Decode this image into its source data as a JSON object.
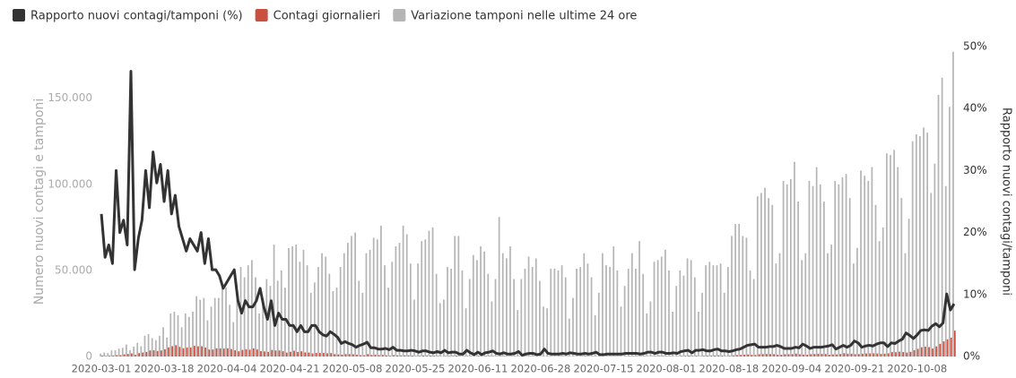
{
  "chart_data": {
    "type": "bar-line",
    "x": [
      "2020-03-01",
      "2020-03-02",
      "2020-03-03",
      "2020-03-04",
      "2020-03-05",
      "2020-03-06",
      "2020-03-07",
      "2020-03-08",
      "2020-03-09",
      "2020-03-10",
      "2020-03-11",
      "2020-03-12",
      "2020-03-13",
      "2020-03-14",
      "2020-03-15",
      "2020-03-16",
      "2020-03-17",
      "2020-03-18",
      "2020-03-19",
      "2020-03-20",
      "2020-03-21",
      "2020-03-22",
      "2020-03-23",
      "2020-03-24",
      "2020-03-25",
      "2020-03-26",
      "2020-03-27",
      "2020-03-28",
      "2020-03-29",
      "2020-03-30",
      "2020-03-31",
      "2020-04-01",
      "2020-04-02",
      "2020-04-03",
      "2020-04-04",
      "2020-04-05",
      "2020-04-06",
      "2020-04-07",
      "2020-04-08",
      "2020-04-09",
      "2020-04-10",
      "2020-04-11",
      "2020-04-12",
      "2020-04-13",
      "2020-04-14",
      "2020-04-15",
      "2020-04-16",
      "2020-04-17",
      "2020-04-18",
      "2020-04-19",
      "2020-04-20",
      "2020-04-21",
      "2020-04-22",
      "2020-04-23",
      "2020-04-24",
      "2020-04-25",
      "2020-04-26",
      "2020-04-27",
      "2020-04-28",
      "2020-04-29",
      "2020-04-30",
      "2020-05-01",
      "2020-05-02",
      "2020-05-03",
      "2020-05-04",
      "2020-05-05",
      "2020-05-06",
      "2020-05-07",
      "2020-05-08",
      "2020-05-09",
      "2020-05-10",
      "2020-05-11",
      "2020-05-12",
      "2020-05-13",
      "2020-05-14",
      "2020-05-15",
      "2020-05-16",
      "2020-05-17",
      "2020-05-18",
      "2020-05-19",
      "2020-05-20",
      "2020-05-21",
      "2020-05-22",
      "2020-05-23",
      "2020-05-24",
      "2020-05-25",
      "2020-05-26",
      "2020-05-27",
      "2020-05-28",
      "2020-05-29",
      "2020-05-30",
      "2020-05-31",
      "2020-06-01",
      "2020-06-02",
      "2020-06-03",
      "2020-06-04",
      "2020-06-05",
      "2020-06-06",
      "2020-06-07",
      "2020-06-08",
      "2020-06-09",
      "2020-06-10",
      "2020-06-11",
      "2020-06-12",
      "2020-06-13",
      "2020-06-14",
      "2020-06-15",
      "2020-06-16",
      "2020-06-17",
      "2020-06-18",
      "2020-06-19",
      "2020-06-20",
      "2020-06-21",
      "2020-06-22",
      "2020-06-23",
      "2020-06-24",
      "2020-06-25",
      "2020-06-26",
      "2020-06-27",
      "2020-06-28",
      "2020-06-29",
      "2020-06-30",
      "2020-07-01",
      "2020-07-02",
      "2020-07-03",
      "2020-07-04",
      "2020-07-05",
      "2020-07-06",
      "2020-07-07",
      "2020-07-08",
      "2020-07-09",
      "2020-07-10",
      "2020-07-11",
      "2020-07-12",
      "2020-07-13",
      "2020-07-14",
      "2020-07-15",
      "2020-07-16",
      "2020-07-17",
      "2020-07-18",
      "2020-07-19",
      "2020-07-20",
      "2020-07-21",
      "2020-07-22",
      "2020-07-23",
      "2020-07-24",
      "2020-07-25",
      "2020-07-26",
      "2020-07-27",
      "2020-07-28",
      "2020-07-29",
      "2020-07-30",
      "2020-07-31",
      "2020-08-01",
      "2020-08-02",
      "2020-08-03",
      "2020-08-04",
      "2020-08-05",
      "2020-08-06",
      "2020-08-07",
      "2020-08-08",
      "2020-08-09",
      "2020-08-10",
      "2020-08-11",
      "2020-08-12",
      "2020-08-13",
      "2020-08-14",
      "2020-08-15",
      "2020-08-16",
      "2020-08-17",
      "2020-08-18",
      "2020-08-19",
      "2020-08-20",
      "2020-08-21",
      "2020-08-22",
      "2020-08-23",
      "2020-08-24",
      "2020-08-25",
      "2020-08-26",
      "2020-08-27",
      "2020-08-28",
      "2020-08-29",
      "2020-08-30",
      "2020-08-31",
      "2020-09-01",
      "2020-09-02",
      "2020-09-03",
      "2020-09-04",
      "2020-09-05",
      "2020-09-06",
      "2020-09-07",
      "2020-09-08",
      "2020-09-09",
      "2020-09-10",
      "2020-09-11",
      "2020-09-12",
      "2020-09-13",
      "2020-09-14",
      "2020-09-15",
      "2020-09-16",
      "2020-09-17",
      "2020-09-18",
      "2020-09-19",
      "2020-09-20",
      "2020-09-21",
      "2020-09-22",
      "2020-09-23",
      "2020-09-24",
      "2020-09-25",
      "2020-09-26",
      "2020-09-27",
      "2020-09-28",
      "2020-09-29",
      "2020-09-30",
      "2020-10-01",
      "2020-10-02",
      "2020-10-03",
      "2020-10-04",
      "2020-10-05",
      "2020-10-06",
      "2020-10-07",
      "2020-10-08",
      "2020-10-09",
      "2020-10-10",
      "2020-10-11",
      "2020-10-12",
      "2020-10-13",
      "2020-10-14",
      "2020-10-15",
      "2020-10-16",
      "2020-10-17",
      "2020-10-18"
    ],
    "xticks": [
      "2020-03-01",
      "2020-03-18",
      "2020-04-04",
      "2020-04-21",
      "2020-05-08",
      "2020-05-25",
      "2020-06-11",
      "2020-06-28",
      "2020-07-15",
      "2020-08-01",
      "2020-08-18",
      "2020-09-04",
      "2020-09-21",
      "2020-10-08"
    ],
    "series": [
      {
        "name": "Rapporto nuovi contagi/tamponi (%)",
        "color": "#333333",
        "kind": "line",
        "axis": "y2",
        "values": [
          23,
          16,
          18,
          15,
          30,
          20,
          22,
          18,
          46,
          14,
          19,
          22,
          30,
          24,
          33,
          28,
          31,
          25,
          30,
          23,
          26,
          21,
          19,
          17,
          19,
          18,
          17,
          20,
          15,
          19,
          14,
          14,
          13,
          11,
          12,
          13,
          14,
          9,
          7,
          9,
          8,
          8,
          9,
          11,
          8,
          6,
          9,
          5,
          7,
          6,
          6,
          5,
          5,
          4,
          5,
          4,
          4,
          5,
          5,
          4,
          3.5,
          3.3,
          4,
          3.6,
          3.1,
          2.1,
          2.4,
          2.1,
          1.9,
          1.5,
          1.8,
          2.0,
          2.3,
          1.4,
          1.4,
          1.2,
          1.2,
          1.3,
          1.1,
          1.5,
          1.0,
          1.0,
          0.9,
          0.9,
          1.0,
          0.9,
          0.7,
          0.9,
          0.9,
          0.7,
          0.6,
          0.8,
          0.6,
          1.0,
          0.6,
          0.7,
          0.7,
          0.4,
          0.4,
          1.0,
          0.6,
          0.3,
          0.7,
          0.3,
          0.6,
          0.7,
          0.9,
          0.5,
          0.4,
          0.6,
          0.4,
          0.4,
          0.5,
          0.8,
          0.2,
          0.4,
          0.5,
          0.5,
          0.3,
          0.4,
          1.2,
          0.5,
          0.4,
          0.4,
          0.4,
          0.5,
          0.4,
          0.6,
          0.5,
          0.4,
          0.4,
          0.5,
          0.4,
          0.5,
          0.7,
          0.3,
          0.3,
          0.4,
          0.4,
          0.4,
          0.4,
          0.4,
          0.5,
          0.5,
          0.5,
          0.5,
          0.4,
          0.5,
          0.7,
          0.7,
          0.5,
          0.7,
          0.7,
          0.5,
          0.5,
          0.6,
          0.5,
          0.8,
          0.9,
          1.0,
          0.6,
          1.0,
          1.0,
          1.1,
          0.9,
          0.9,
          1.1,
          1.2,
          0.9,
          0.9,
          0.8,
          0.9,
          1.1,
          1.2,
          1.5,
          1.8,
          1.9,
          2.0,
          1.5,
          1.5,
          1.5,
          1.6,
          1.6,
          1.8,
          1.6,
          1.3,
          1.3,
          1.3,
          1.5,
          1.4,
          2.0,
          1.7,
          1.3,
          1.5,
          1.5,
          1.5,
          1.6,
          1.7,
          1.9,
          1.2,
          1.5,
          1.8,
          1.5,
          1.8,
          2.5,
          2.2,
          1.5,
          1.7,
          1.8,
          1.7,
          2.0,
          2.2,
          2.2,
          1.6,
          2.2,
          2.1,
          2.5,
          2.8,
          3.8,
          3.4,
          2.9,
          3.5,
          4.2,
          4.3,
          4.2,
          4.9,
          5.3,
          4.8,
          5.4,
          10.1,
          7.5,
          8.5
        ]
      },
      {
        "name": "Contagi giornalieri",
        "color": "#c9503f",
        "kind": "bar",
        "values": [
          570,
          350,
          470,
          580,
          770,
          780,
          1250,
          1490,
          1800,
          980,
          2000,
          2300,
          2550,
          3500,
          3590,
          3230,
          3530,
          4200,
          5320,
          5990,
          6560,
          5560,
          4790,
          5250,
          5210,
          6200,
          5960,
          5970,
          5220,
          4050,
          4050,
          4780,
          4670,
          4590,
          4800,
          4320,
          3600,
          3040,
          3840,
          4200,
          3950,
          4690,
          4090,
          3150,
          2970,
          2670,
          3790,
          3490,
          3490,
          3050,
          2260,
          2730,
          3370,
          2650,
          3020,
          2360,
          2320,
          1740,
          2090,
          2090,
          2090,
          1870,
          1960,
          1390,
          1220,
          1080,
          1440,
          1400,
          1330,
          1080,
          800,
          740,
          1400,
          890,
          990,
          790,
          880,
          680,
          450,
          810,
          660,
          640,
          650,
          670,
          530,
          300,
          400,
          580,
          590,
          520,
          420,
          360,
          180,
          320,
          320,
          380,
          520,
          270,
          200,
          280,
          280,
          200,
          380,
          160,
          340,
          340,
          300,
          210,
          330,
          330,
          250,
          260,
          220,
          220,
          110,
          190,
          300,
          260,
          180,
          170,
          130,
          140,
          190,
          180,
          220,
          240,
          190,
          140,
          160,
          190,
          230,
          280,
          190,
          230,
          170,
          110,
          160,
          230,
          230,
          230,
          220,
          130,
          190,
          280,
          300,
          250,
          280,
          250,
          180,
          210,
          290,
          380,
          380,
          300,
          240,
          160,
          190,
          380,
          400,
          550,
          350,
          460,
          260,
          410,
          480,
          520,
          570,
          630,
          480,
          320,
          400,
          640,
          840,
          950,
          1070,
          1210,
          950,
          880,
          1370,
          1400,
          1460,
          1440,
          1370,
          990,
          980,
          1330,
          1330,
          1390,
          1700,
          1300,
          1110,
          1010,
          1370,
          1450,
          1600,
          1500,
          1460,
          1010,
          1230,
          1230,
          1450,
          1900,
          1640,
          1640,
          1350,
          1390,
          1640,
          1790,
          1790,
          1870,
          1770,
          1500,
          1650,
          1850,
          2550,
          2500,
          2800,
          2580,
          2260,
          2680,
          3680,
          4460,
          5370,
          5720,
          5460,
          4620,
          5900,
          7330,
          8800,
          10010,
          10930,
          15000
        ]
      },
      {
        "name": "Variazione tamponi nelle ultime 24 ore",
        "color": "#b5b5b5",
        "kind": "bar",
        "values": [
          1700,
          2300,
          2000,
          3500,
          3600,
          4600,
          5000,
          7000,
          3700,
          5700,
          7900,
          6000,
          12000,
          13000,
          10700,
          9500,
          12000,
          17000,
          11000,
          25000,
          26000,
          24000,
          17000,
          25000,
          23000,
          26000,
          35000,
          33000,
          34000,
          21000,
          29000,
          34000,
          34000,
          41000,
          40000,
          30000,
          20000,
          33000,
          52000,
          46000,
          53000,
          56000,
          46000,
          25000,
          34000,
          45000,
          41000,
          65000,
          44000,
          50000,
          40000,
          63000,
          64000,
          65000,
          55000,
          62000,
          53000,
          37000,
          43000,
          52000,
          60000,
          58000,
          48000,
          38000,
          40000,
          52000,
          60000,
          66000,
          70000,
          72000,
          44000,
          37000,
          60000,
          62000,
          69000,
          68000,
          76000,
          53000,
          40000,
          55000,
          64000,
          66000,
          76000,
          71000,
          54000,
          33000,
          54000,
          67000,
          68000,
          73000,
          75000,
          48000,
          31000,
          33000,
          52000,
          51000,
          70000,
          70000,
          50000,
          28000,
          45000,
          59000,
          56000,
          64000,
          61000,
          48000,
          32000,
          45000,
          81000,
          60000,
          57000,
          64000,
          45000,
          27000,
          45000,
          51000,
          58000,
          52000,
          57000,
          44000,
          29000,
          28000,
          51000,
          51000,
          50000,
          53000,
          46000,
          22000,
          34000,
          51000,
          52000,
          60000,
          54000,
          46000,
          24000,
          37000,
          60000,
          53000,
          52000,
          64000,
          50000,
          29000,
          41000,
          51000,
          60000,
          51000,
          67000,
          48000,
          25000,
          32000,
          55000,
          56000,
          58000,
          62000,
          50000,
          26000,
          41000,
          50000,
          47000,
          57000,
          56000,
          46000,
          26000,
          37000,
          53000,
          55000,
          53000,
          53000,
          54000,
          37000,
          52000,
          70000,
          77000,
          77000,
          70000,
          69000,
          50000,
          45000,
          93000,
          95000,
          98000,
          92000,
          88000,
          54000,
          60000,
          102000,
          100000,
          103000,
          113000,
          90000,
          56000,
          60000,
          102000,
          99000,
          110000,
          100000,
          90000,
          60000,
          65000,
          102000,
          100000,
          104000,
          106000,
          92000,
          54000,
          63000,
          108000,
          105000,
          102000,
          110000,
          88000,
          67000,
          75000,
          118000,
          117000,
          120000,
          110000,
          92000,
          60000,
          80000,
          125000,
          129000,
          128000,
          133000,
          130000,
          95000,
          112000,
          152000,
          162000,
          99000,
          145000,
          177000
        ]
      }
    ],
    "ylabel": "Numero nuovi contagi e tamponi",
    "y2label": "Rapporto nuovi contagi/tamponi",
    "ylim": [
      0,
      180000
    ],
    "yticks": [
      0,
      {
        "value": 50000,
        "label": "50.000"
      },
      {
        "value": 100000,
        "label": "100.000"
      },
      {
        "value": 150000,
        "label": "150.000"
      }
    ],
    "y2lim": [
      0,
      50
    ],
    "y2ticks": [
      {
        "value": 0,
        "label": "0%"
      },
      {
        "value": 10,
        "label": "10%"
      },
      {
        "value": 20,
        "label": "20%"
      },
      {
        "value": 30,
        "label": "30%"
      },
      {
        "value": 40,
        "label": "40%"
      },
      {
        "value": 50,
        "label": "50%"
      }
    ],
    "legend": "top-left",
    "grid": false
  }
}
